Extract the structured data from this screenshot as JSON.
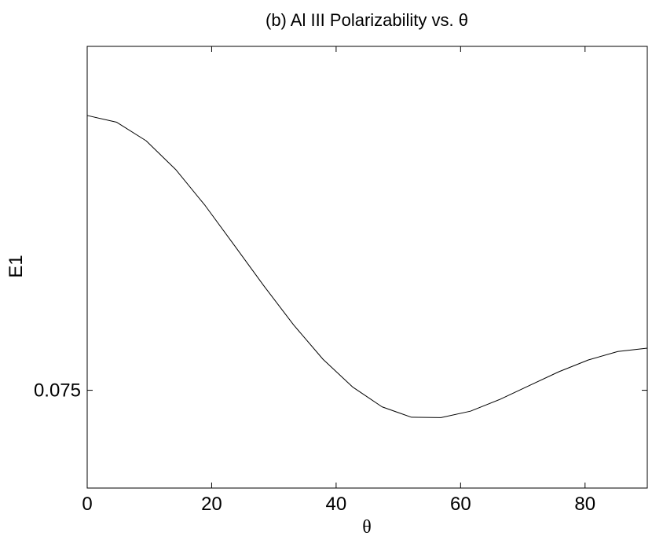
{
  "chart_data": {
    "type": "line",
    "title": "(b) Al III Polarizability vs. θ",
    "xlabel": "θ",
    "ylabel": "E1",
    "xlim": [
      0,
      90
    ],
    "ylim": [
      0.0721,
      0.0852
    ],
    "xticks": [
      0,
      20,
      40,
      60,
      80
    ],
    "xtick_labels": [
      "0",
      "20",
      "40",
      "60",
      "80"
    ],
    "yticks": [
      0.075
    ],
    "ytick_labels": [
      "0.075"
    ],
    "grid": false,
    "series": [
      {
        "color": "#000000",
        "x": [
          0,
          4.74,
          9.47,
          14.21,
          18.95,
          23.68,
          28.42,
          33.16,
          37.89,
          42.63,
          47.37,
          52.11,
          56.84,
          61.58,
          66.32,
          71.05,
          75.79,
          80.53,
          85.26,
          90
        ],
        "y": [
          0.08315,
          0.08295,
          0.0824,
          0.08155,
          0.08048,
          0.07929,
          0.07809,
          0.07694,
          0.07592,
          0.0751,
          0.07451,
          0.0742,
          0.07419,
          0.07438,
          0.07473,
          0.07514,
          0.07555,
          0.0759,
          0.07615,
          0.07625
        ]
      }
    ]
  }
}
